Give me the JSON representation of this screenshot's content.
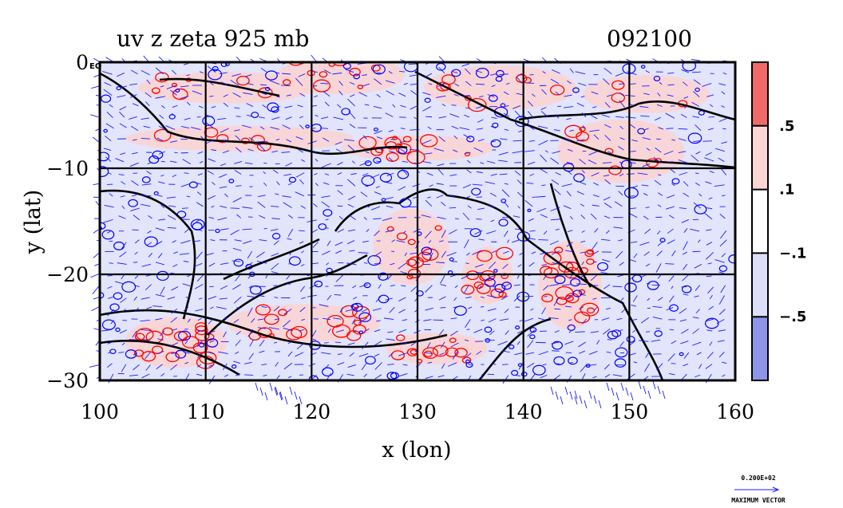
{
  "chart_data": {
    "type": "contour",
    "title": "uv z zeta 925 mb",
    "time_label": "092100",
    "xlabel": "x (lon)",
    "ylabel": "y (lat)",
    "xlim": [
      100,
      160
    ],
    "ylim": [
      -30,
      0
    ],
    "x_ticks": [
      {
        "value": 100,
        "label": "100"
      },
      {
        "value": 110,
        "label": "110"
      },
      {
        "value": 120,
        "label": "120"
      },
      {
        "value": 130,
        "label": "130"
      },
      {
        "value": 140,
        "label": "140"
      },
      {
        "value": 150,
        "label": "150"
      },
      {
        "value": 160,
        "label": "160"
      }
    ],
    "y_ticks": [
      {
        "value": 0,
        "label": "0"
      },
      {
        "value": -10,
        "label": "−10"
      },
      {
        "value": -20,
        "label": "−20"
      },
      {
        "value": -30,
        "label": "−30"
      }
    ],
    "y_tick_suffix": "EQ",
    "grid": true,
    "grid_lon": [
      110,
      120,
      130,
      140,
      150
    ],
    "grid_lat": [
      -10,
      -20
    ],
    "colorbar": {
      "placement": "right",
      "levels": [
        {
          "label": ".5",
          "value": 0.5
        },
        {
          "label": ".1",
          "value": 0.1
        },
        {
          "label": "−.1",
          "value": -0.1
        },
        {
          "label": "−.5",
          "value": -0.5
        }
      ],
      "colors": [
        "#f06a6a",
        "#fbd4d4",
        "#ffffff",
        "#dcdff8",
        "#8e95e8"
      ]
    },
    "reference_vector": {
      "value_label": "0.200E+02",
      "caption": "MAXIMUM VECTOR"
    },
    "colors": {
      "positive_contour": "#ff0000",
      "negative_contour": "#0000ff",
      "vector": "#1a1aff",
      "coast": "#000000"
    }
  }
}
